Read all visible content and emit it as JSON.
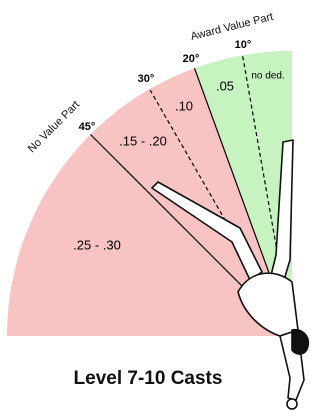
{
  "zones": {
    "award": "Award Value Part",
    "no_value": "No Value Part"
  },
  "angles": [
    "10°",
    "20°",
    "30°",
    "45°"
  ],
  "deductions": [
    "no ded.",
    ".05",
    ".10",
    ".15 - .20",
    ".25 - .30"
  ],
  "title": "Level 7-10 Casts"
}
